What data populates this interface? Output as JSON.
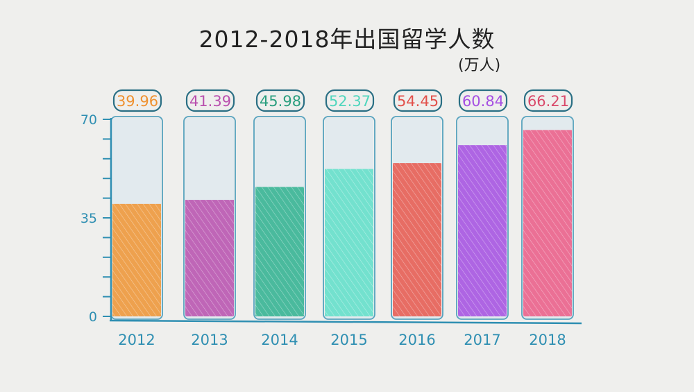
{
  "chart_data": {
    "type": "bar",
    "title": "2012-2018年出国留学人数",
    "unit": "(万人)",
    "categories": [
      "2012",
      "2013",
      "2014",
      "2015",
      "2016",
      "2017",
      "2018"
    ],
    "values": [
      39.96,
      41.39,
      45.98,
      52.37,
      54.45,
      60.84,
      66.21
    ],
    "data_labels": [
      "39.96",
      "41.39",
      "45.98",
      "52.37",
      "54.45",
      "60.84",
      "66.21"
    ],
    "colors": [
      "#f09432",
      "#b94fae",
      "#2fb28f",
      "#5fe0c9",
      "#e8574d",
      "#a54ee2",
      "#ec5b86"
    ],
    "label_colors": [
      "#ef9130",
      "#b94fae",
      "#2a9e7e",
      "#4fd6bd",
      "#e2504a",
      "#a54ee2",
      "#d9496a"
    ],
    "ylim": [
      0,
      70
    ],
    "yticks": [
      "0",
      "35",
      "70"
    ],
    "axis_color": "#2f8fb2",
    "grid": false,
    "xlabel": "",
    "ylabel": ""
  }
}
